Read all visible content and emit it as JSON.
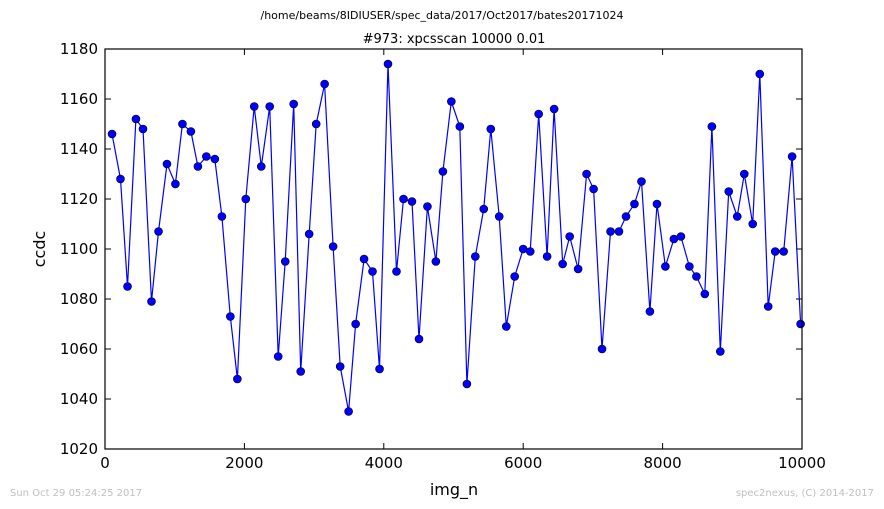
{
  "suptitle": "/home/beams/8IDIUSER/spec_data/2017/Oct2017/bates20171024",
  "footer": {
    "timestamp": "Sun Oct 29 05:24:25 2017",
    "credit": "spec2nexus, (C) 2014-2017"
  },
  "chart_data": {
    "type": "line",
    "title": "#973: xpcsscan 10000 0.01",
    "xlabel": "img_n",
    "ylabel": "ccdc",
    "xlim": [
      0,
      10000
    ],
    "ylim": [
      1020,
      1180
    ],
    "xticks": [
      0,
      2000,
      4000,
      6000,
      8000,
      10000
    ],
    "yticks": [
      1020,
      1040,
      1060,
      1080,
      1100,
      1120,
      1140,
      1160,
      1180
    ],
    "grid": false,
    "marker": "circle",
    "color": "#0000ff",
    "series": [
      {
        "x": [
          101,
          222,
          323,
          444,
          545,
          667,
          768,
          889,
          1010,
          1111,
          1232,
          1333,
          1454,
          1576,
          1677,
          1798,
          1899,
          2020,
          2141,
          2242,
          2363,
          2485,
          2586,
          2707,
          2808,
          2929,
          3030,
          3151,
          3273,
          3374,
          3495,
          3596,
          3717,
          3838,
          3939,
          4060,
          4182,
          4283,
          4404,
          4505,
          4626,
          4747,
          4848,
          4969,
          5091,
          5192,
          5313,
          5434,
          5535,
          5656,
          5757,
          5878,
          6000,
          6101,
          6222,
          6343,
          6444,
          6566,
          6667,
          6788,
          6909,
          7010,
          7131,
          7253,
          7374,
          7475,
          7596,
          7697,
          7818,
          7919,
          8040,
          8162,
          8263,
          8384,
          8485,
          8606,
          8707,
          8828,
          8949,
          9071,
          9172,
          9293,
          9394,
          9515,
          9616,
          9737,
          9858,
          9980
        ],
        "y": [
          1146,
          1128,
          1085,
          1152,
          1148,
          1079,
          1107,
          1134,
          1126,
          1150,
          1147,
          1133,
          1137,
          1136,
          1113,
          1073,
          1048,
          1120,
          1157,
          1133,
          1157,
          1057,
          1095,
          1158,
          1051,
          1106,
          1150,
          1166,
          1101,
          1053,
          1035,
          1070,
          1096,
          1091,
          1052,
          1174,
          1091,
          1120,
          1119,
          1064,
          1117,
          1095,
          1131,
          1159,
          1149,
          1046,
          1097,
          1116,
          1148,
          1113,
          1069,
          1089,
          1100,
          1099,
          1154,
          1097,
          1156,
          1094,
          1105,
          1092,
          1130,
          1124,
          1060,
          1107,
          1107,
          1113,
          1118,
          1127,
          1075,
          1118,
          1093,
          1104,
          1105,
          1093,
          1089,
          1082,
          1149,
          1059,
          1123,
          1113,
          1130,
          1110,
          1170,
          1077,
          1099,
          1099,
          1137,
          1070
        ]
      }
    ]
  }
}
